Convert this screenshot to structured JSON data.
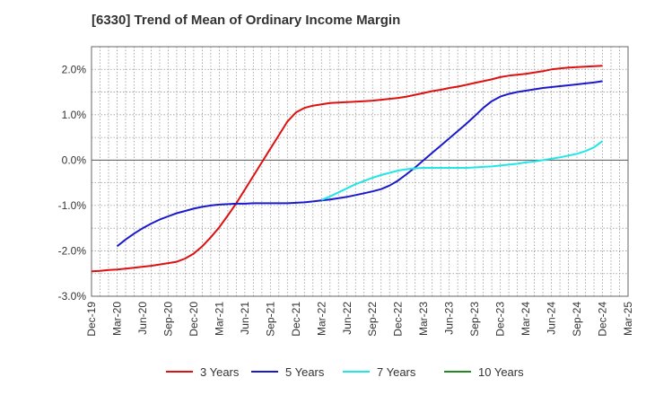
{
  "chart_data": {
    "type": "line",
    "title": "[6330]  Trend of Mean of Ordinary Income Margin",
    "y_unit": "%",
    "ylim": [
      -3.0,
      2.5
    ],
    "y_ticks": [
      "2.0%",
      "1.0%",
      "0.0%",
      "-1.0%",
      "-2.0%",
      "-3.0%"
    ],
    "y_tick_values": [
      2.0,
      1.0,
      0.0,
      -1.0,
      -2.0,
      -3.0
    ],
    "x_ticks": [
      "Dec-19",
      "Mar-20",
      "Jun-20",
      "Sep-20",
      "Dec-20",
      "Mar-21",
      "Jun-21",
      "Sep-21",
      "Dec-21",
      "Mar-22",
      "Jun-22",
      "Sep-22",
      "Dec-22",
      "Mar-23",
      "Jun-23",
      "Sep-23",
      "Dec-23",
      "Mar-24",
      "Jun-24",
      "Sep-24",
      "Dec-24",
      "Mar-25"
    ],
    "grid": true,
    "legend_position": "bottom",
    "series": [
      {
        "name": "3 Years",
        "color": "#dd1111",
        "x": [
          "Dec-19",
          "Jan-20",
          "Feb-20",
          "Mar-20",
          "Apr-20",
          "May-20",
          "Jun-20",
          "Jul-20",
          "Aug-20",
          "Sep-20",
          "Oct-20",
          "Nov-20",
          "Dec-20",
          "Jan-21",
          "Feb-21",
          "Mar-21",
          "Apr-21",
          "May-21",
          "Jun-21",
          "Jul-21",
          "Aug-21",
          "Sep-21",
          "Oct-21",
          "Nov-21",
          "Dec-21",
          "Jan-22",
          "Feb-22",
          "Mar-22",
          "Apr-22",
          "May-22",
          "Jun-22",
          "Jul-22",
          "Aug-22",
          "Sep-22",
          "Oct-22",
          "Nov-22",
          "Dec-22",
          "Jan-23",
          "Feb-23",
          "Mar-23",
          "Apr-23",
          "May-23",
          "Jun-23",
          "Jul-23",
          "Aug-23",
          "Sep-23",
          "Oct-23",
          "Nov-23",
          "Dec-23",
          "Jan-24",
          "Feb-24",
          "Mar-24",
          "Apr-24",
          "May-24",
          "Jun-24",
          "Jul-24",
          "Aug-24",
          "Sep-24",
          "Oct-24",
          "Nov-24",
          "Dec-24"
        ],
        "values": [
          -2.45,
          -2.44,
          -2.42,
          -2.41,
          -2.39,
          -2.37,
          -2.35,
          -2.33,
          -2.3,
          -2.27,
          -2.24,
          -2.17,
          -2.06,
          -1.9,
          -1.7,
          -1.48,
          -1.22,
          -0.95,
          -0.65,
          -0.35,
          -0.05,
          0.25,
          0.55,
          0.85,
          1.05,
          1.15,
          1.2,
          1.23,
          1.26,
          1.27,
          1.28,
          1.29,
          1.3,
          1.31,
          1.33,
          1.35,
          1.37,
          1.4,
          1.44,
          1.48,
          1.52,
          1.55,
          1.59,
          1.62,
          1.66,
          1.7,
          1.74,
          1.78,
          1.83,
          1.86,
          1.88,
          1.9,
          1.93,
          1.96,
          2.0,
          2.02,
          2.04,
          2.05,
          2.06,
          2.07,
          2.08
        ]
      },
      {
        "name": "5 Years",
        "color": "#1a1acc",
        "x": [
          "Mar-20",
          "Apr-20",
          "May-20",
          "Jun-20",
          "Jul-20",
          "Aug-20",
          "Sep-20",
          "Oct-20",
          "Nov-20",
          "Dec-20",
          "Jan-21",
          "Feb-21",
          "Mar-21",
          "Apr-21",
          "May-21",
          "Jun-21",
          "Jul-21",
          "Aug-21",
          "Sep-21",
          "Oct-21",
          "Nov-21",
          "Dec-21",
          "Jan-22",
          "Feb-22",
          "Mar-22",
          "Apr-22",
          "May-22",
          "Jun-22",
          "Jul-22",
          "Aug-22",
          "Sep-22",
          "Oct-22",
          "Nov-22",
          "Dec-22",
          "Jan-23",
          "Feb-23",
          "Mar-23",
          "Apr-23",
          "May-23",
          "Jun-23",
          "Jul-23",
          "Aug-23",
          "Sep-23",
          "Oct-23",
          "Nov-23",
          "Dec-23",
          "Jan-24",
          "Feb-24",
          "Mar-24",
          "Apr-24",
          "May-24",
          "Jun-24",
          "Jul-24",
          "Aug-24",
          "Sep-24",
          "Oct-24",
          "Nov-24",
          "Dec-24"
        ],
        "values": [
          -1.9,
          -1.75,
          -1.62,
          -1.5,
          -1.4,
          -1.31,
          -1.24,
          -1.17,
          -1.12,
          -1.07,
          -1.03,
          -1.0,
          -0.98,
          -0.97,
          -0.96,
          -0.96,
          -0.95,
          -0.95,
          -0.95,
          -0.95,
          -0.95,
          -0.94,
          -0.93,
          -0.91,
          -0.89,
          -0.87,
          -0.84,
          -0.81,
          -0.77,
          -0.73,
          -0.69,
          -0.64,
          -0.56,
          -0.45,
          -0.31,
          -0.16,
          0.0,
          0.16,
          0.32,
          0.48,
          0.64,
          0.8,
          0.97,
          1.15,
          1.3,
          1.4,
          1.46,
          1.5,
          1.53,
          1.56,
          1.59,
          1.61,
          1.63,
          1.65,
          1.67,
          1.69,
          1.71,
          1.74
        ]
      },
      {
        "name": "7 Years",
        "color": "#22e6e6",
        "x": [
          "Mar-22",
          "Apr-22",
          "May-22",
          "Jun-22",
          "Jul-22",
          "Aug-22",
          "Sep-22",
          "Oct-22",
          "Nov-22",
          "Dec-22",
          "Jan-23",
          "Feb-23",
          "Mar-23",
          "Apr-23",
          "May-23",
          "Jun-23",
          "Jul-23",
          "Aug-23",
          "Sep-23",
          "Oct-23",
          "Nov-23",
          "Dec-23",
          "Jan-24",
          "Feb-24",
          "Mar-24",
          "Apr-24",
          "May-24",
          "Jun-24",
          "Jul-24",
          "Aug-24",
          "Sep-24",
          "Oct-24",
          "Nov-24",
          "Dec-24"
        ],
        "values": [
          -0.88,
          -0.8,
          -0.71,
          -0.62,
          -0.53,
          -0.46,
          -0.39,
          -0.33,
          -0.28,
          -0.23,
          -0.2,
          -0.18,
          -0.17,
          -0.17,
          -0.17,
          -0.17,
          -0.17,
          -0.17,
          -0.16,
          -0.15,
          -0.14,
          -0.12,
          -0.1,
          -0.08,
          -0.05,
          -0.03,
          0.0,
          0.03,
          0.06,
          0.1,
          0.14,
          0.2,
          0.28,
          0.42
        ]
      },
      {
        "name": "10 Years",
        "color": "#228822",
        "x": [],
        "values": []
      }
    ]
  }
}
